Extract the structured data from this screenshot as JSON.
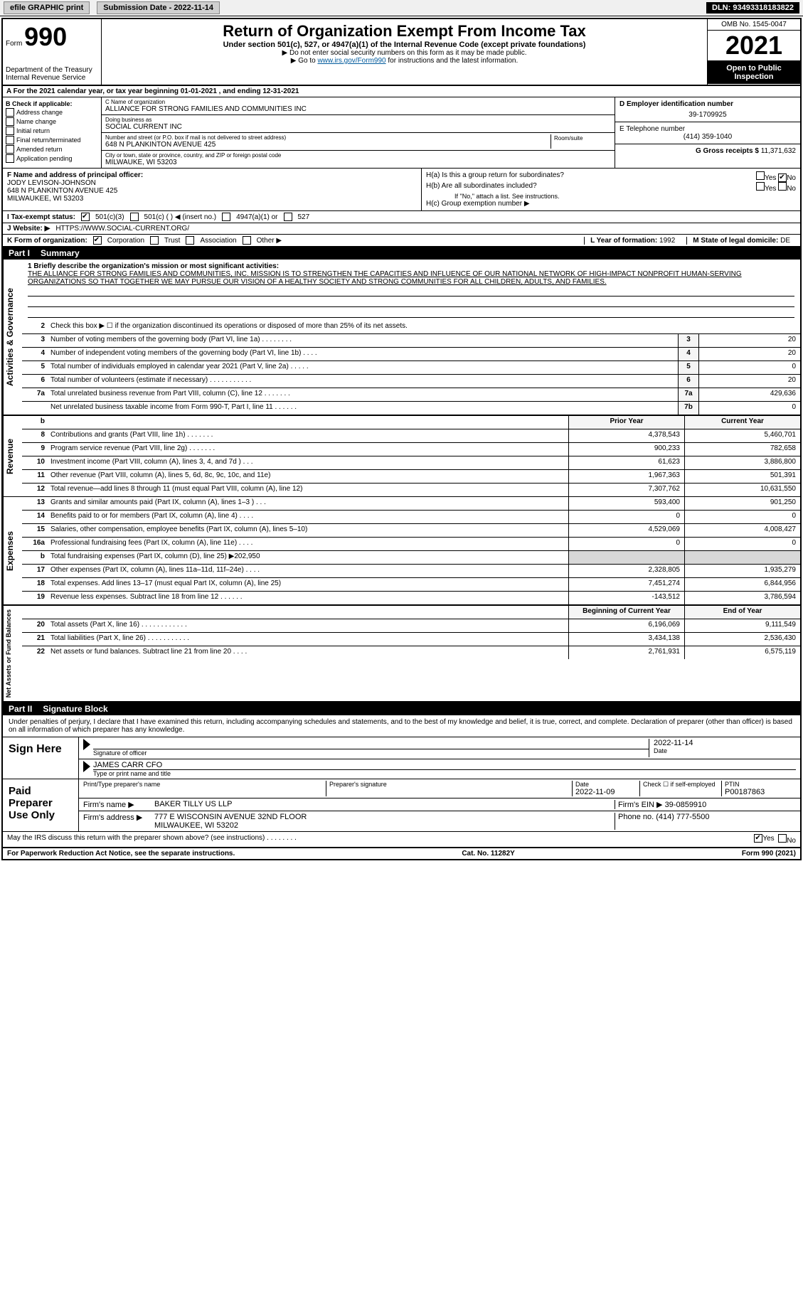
{
  "topbar": {
    "efile": "efile GRAPHIC print",
    "submission": "Submission Date - 2022-11-14",
    "dln": "DLN: 93493318183822"
  },
  "header": {
    "form_word": "Form",
    "form_num": "990",
    "dept": "Department of the Treasury",
    "irs": "Internal Revenue Service",
    "title": "Return of Organization Exempt From Income Tax",
    "subtitle": "Under section 501(c), 527, or 4947(a)(1) of the Internal Revenue Code (except private foundations)",
    "note1": "▶ Do not enter social security numbers on this form as it may be made public.",
    "note2_prefix": "▶ Go to ",
    "note2_link": "www.irs.gov/Form990",
    "note2_suffix": " for instructions and the latest information.",
    "omb": "OMB No. 1545-0047",
    "year": "2021",
    "open": "Open to Public Inspection"
  },
  "period": {
    "label_a": "A For the 2021 calendar year, or tax year beginning ",
    "begin": "01-01-2021",
    "mid": " , and ending ",
    "end": "12-31-2021"
  },
  "check_b": {
    "label": "B Check if applicable:",
    "items": [
      "Address change",
      "Name change",
      "Initial return",
      "Final return/terminated",
      "Amended return",
      "Application pending"
    ]
  },
  "entity": {
    "c_label": "C Name of organization",
    "name": "ALLIANCE FOR STRONG FAMILIES AND COMMUNITIES INC",
    "dba_label": "Doing business as",
    "dba": "SOCIAL CURRENT INC",
    "addr_label": "Number and street (or P.O. box if mail is not delivered to street address)",
    "room_label": "Room/suite",
    "addr": "648 N PLANKINTON AVENUE 425",
    "city_label": "City or town, state or province, country, and ZIP or foreign postal code",
    "city": "MILWAUKE, WI  53203"
  },
  "right_box": {
    "d_label": "D Employer identification number",
    "ein": "39-1709925",
    "e_label": "E Telephone number",
    "phone": "(414) 359-1040",
    "g_label": "G Gross receipts $ ",
    "gross": "11,371,632"
  },
  "officer": {
    "f_label": "F Name and address of principal officer:",
    "name": "JODY LEVISON-JOHNSON",
    "addr1": "648 N PLANKINTON AVENUE 425",
    "addr2": "MILWAUKEE, WI  53203",
    "ha": "H(a)  Is this a group return for subordinates?",
    "hb": "H(b)  Are all subordinates included?",
    "hb_note": "If \"No,\" attach a list. See instructions.",
    "hc": "H(c)  Group exemption number ▶",
    "yes": "Yes",
    "no": "No"
  },
  "status": {
    "i_label": "I  Tax-exempt status:",
    "opt1": "501(c)(3)",
    "opt2": "501(c) (  ) ◀ (insert no.)",
    "opt3": "4947(a)(1) or",
    "opt4": "527",
    "j_label": "J  Website: ▶",
    "website": "HTTPS://WWW.SOCIAL-CURRENT.ORG/",
    "k_label": "K Form of organization:",
    "k_opts": [
      "Corporation",
      "Trust",
      "Association",
      "Other ▶"
    ],
    "l_label": "L Year of formation: ",
    "l_val": "1992",
    "m_label": "M State of legal domicile: ",
    "m_val": "DE"
  },
  "part1": {
    "label": "Part I",
    "title": "Summary"
  },
  "mission": {
    "label": "1  Briefly describe the organization's mission or most significant activities:",
    "text": "THE ALLIANCE FOR STRONG FAMILIES AND COMMUNITIES, INC. MISSION IS TO STRENGTHEN THE CAPACITIES AND INFLUENCE OF OUR NATIONAL NETWORK OF HIGH-IMPACT NONPROFIT HUMAN-SERVING ORGANIZATIONS SO THAT TOGETHER WE MAY PURSUE OUR VISION OF A HEALTHY SOCIETY AND STRONG COMMUNITIES FOR ALL CHILDREN, ADULTS, AND FAMILIES."
  },
  "governance": {
    "section_label": "Activities & Governance",
    "line2": "Check this box ▶ ☐ if the organization discontinued its operations or disposed of more than 25% of its net assets.",
    "rows": [
      {
        "num": "3",
        "text": "Number of voting members of the governing body (Part VI, line 1a)   .    .    .    .    .    .    .    .",
        "key": "3",
        "val": "20"
      },
      {
        "num": "4",
        "text": "Number of independent voting members of the governing body (Part VI, line 1b)   .    .    .    .",
        "key": "4",
        "val": "20"
      },
      {
        "num": "5",
        "text": "Total number of individuals employed in calendar year 2021 (Part V, line 2a)   .    .    .    .    .",
        "key": "5",
        "val": "0"
      },
      {
        "num": "6",
        "text": "Total number of volunteers (estimate if necessary)    .    .    .    .    .    .    .    .    .    .    .",
        "key": "6",
        "val": "20"
      },
      {
        "num": "7a",
        "text": "Total unrelated business revenue from Part VIII, column (C), line 12   .    .    .    .    .    .    .",
        "key": "7a",
        "val": "429,636"
      },
      {
        "num": "",
        "text": "Net unrelated business taxable income from Form 990-T, Part I, line 11   .    .    .    .    .    .",
        "key": "7b",
        "val": "0"
      }
    ]
  },
  "two_col_header": {
    "prior": "Prior Year",
    "current": "Current Year"
  },
  "revenue": {
    "section_label": "Revenue",
    "rows": [
      {
        "num": "8",
        "text": "Contributions and grants (Part VIII, line 1h)   .    .    .    .    .    .    .",
        "prior": "4,378,543",
        "cur": "5,460,701"
      },
      {
        "num": "9",
        "text": "Program service revenue (Part VIII, line 2g)   .    .    .    .    .    .    .",
        "prior": "900,233",
        "cur": "782,658"
      },
      {
        "num": "10",
        "text": "Investment income (Part VIII, column (A), lines 3, 4, and 7d )   .    .    .",
        "prior": "61,623",
        "cur": "3,886,800"
      },
      {
        "num": "11",
        "text": "Other revenue (Part VIII, column (A), lines 5, 6d, 8c, 9c, 10c, and 11e)",
        "prior": "1,967,363",
        "cur": "501,391"
      },
      {
        "num": "12",
        "text": "Total revenue—add lines 8 through 11 (must equal Part VIII, column (A), line 12)",
        "prior": "7,307,762",
        "cur": "10,631,550"
      }
    ]
  },
  "expenses": {
    "section_label": "Expenses",
    "rows": [
      {
        "num": "13",
        "text": "Grants and similar amounts paid (Part IX, column (A), lines 1–3 )   .    .    .",
        "prior": "593,400",
        "cur": "901,250"
      },
      {
        "num": "14",
        "text": "Benefits paid to or for members (Part IX, column (A), line 4)   .    .    .    .",
        "prior": "0",
        "cur": "0"
      },
      {
        "num": "15",
        "text": "Salaries, other compensation, employee benefits (Part IX, column (A), lines 5–10)",
        "prior": "4,529,069",
        "cur": "4,008,427"
      },
      {
        "num": "16a",
        "text": "Professional fundraising fees (Part IX, column (A), line 11e)   .    .    .    .",
        "prior": "0",
        "cur": "0"
      },
      {
        "num": "b",
        "text": "Total fundraising expenses (Part IX, column (D), line 25) ▶202,950",
        "prior": "",
        "cur": "",
        "grey": true
      },
      {
        "num": "17",
        "text": "Other expenses (Part IX, column (A), lines 11a–11d, 11f–24e)   .    .    .    .",
        "prior": "2,328,805",
        "cur": "1,935,279"
      },
      {
        "num": "18",
        "text": "Total expenses. Add lines 13–17 (must equal Part IX, column (A), line 25)",
        "prior": "7,451,274",
        "cur": "6,844,956"
      },
      {
        "num": "19",
        "text": "Revenue less expenses. Subtract line 18 from line 12   .    .    .    .    .    .",
        "prior": "-143,512",
        "cur": "3,786,594"
      }
    ]
  },
  "netassets": {
    "section_label": "Net Assets or Fund Balances",
    "header": {
      "prior": "Beginning of Current Year",
      "cur": "End of Year"
    },
    "rows": [
      {
        "num": "20",
        "text": "Total assets (Part X, line 16)   .    .    .    .    .    .    .    .    .    .    .    .",
        "prior": "6,196,069",
        "cur": "9,111,549"
      },
      {
        "num": "21",
        "text": "Total liabilities (Part X, line 26)   .    .    .    .    .    .    .    .    .    .    .",
        "prior": "3,434,138",
        "cur": "2,536,430"
      },
      {
        "num": "22",
        "text": "Net assets or fund balances. Subtract line 21 from line 20   .    .    .    .",
        "prior": "2,761,931",
        "cur": "6,575,119"
      }
    ]
  },
  "part2": {
    "label": "Part II",
    "title": "Signature Block",
    "penalties": "Under penalties of perjury, I declare that I have examined this return, including accompanying schedules and statements, and to the best of my knowledge and belief, it is true, correct, and complete. Declaration of preparer (other than officer) is based on all information of which preparer has any knowledge."
  },
  "sign": {
    "label": "Sign Here",
    "sig_officer": "Signature of officer",
    "date_label": "Date",
    "date": "2022-11-14",
    "name": "JAMES CARR CFO",
    "name_label": "Type or print name and title"
  },
  "preparer": {
    "label": "Paid Preparer Use Only",
    "col1": "Print/Type preparer's name",
    "col2": "Preparer's signature",
    "col3": "Date",
    "date": "2022-11-09",
    "col4": "Check ☐ if self-employed",
    "col5": "PTIN",
    "ptin": "P00187863",
    "firm_label": "Firm's name    ▶",
    "firm": "BAKER TILLY US LLP",
    "ein_label": "Firm's EIN ▶",
    "ein": "39-0859910",
    "addr_label": "Firm's address ▶",
    "addr1": "777 E WISCONSIN AVENUE 32ND FLOOR",
    "addr2": "MILWAUKEE, WI  53202",
    "phone_label": "Phone no. ",
    "phone": "(414) 777-5500"
  },
  "discuss": {
    "text": "May the IRS discuss this return with the preparer shown above? (see instructions)   .    .    .    .    .    .    .    .",
    "yes": "Yes",
    "no": "No"
  },
  "footer": {
    "left": "For Paperwork Reduction Act Notice, see the separate instructions.",
    "mid": "Cat. No. 11282Y",
    "right": "Form 990 (2021)"
  }
}
